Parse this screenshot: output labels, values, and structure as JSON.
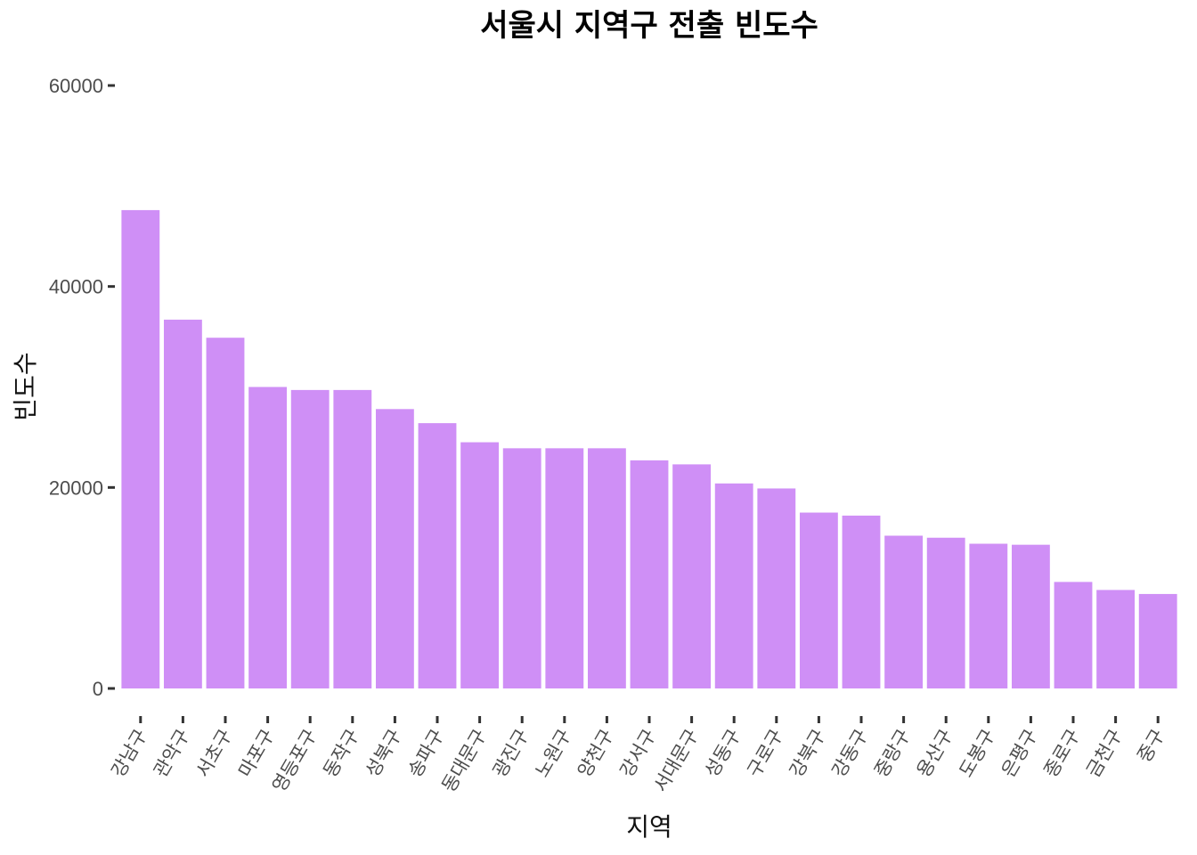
{
  "chart_data": {
    "type": "bar",
    "title": "서울시 지역구 전출 빈도수",
    "xlabel": "지역",
    "ylabel": "빈도수",
    "categories": [
      "강남구",
      "관악구",
      "서초구",
      "마포구",
      "영등포구",
      "동작구",
      "성북구",
      "송파구",
      "동대문구",
      "광진구",
      "노원구",
      "양천구",
      "강서구",
      "서대문구",
      "성동구",
      "구로구",
      "강북구",
      "강동구",
      "중랑구",
      "용산구",
      "도봉구",
      "은평구",
      "종로구",
      "금천구",
      "중구"
    ],
    "values": [
      47600,
      36700,
      34900,
      30000,
      29700,
      29700,
      27800,
      26400,
      24500,
      23900,
      23900,
      23900,
      22700,
      22300,
      20400,
      19900,
      17500,
      17200,
      15200,
      15000,
      14400,
      14300,
      10600,
      9800,
      9400
    ],
    "ylim": [
      0,
      60000
    ],
    "yticks": [
      0,
      20000,
      40000,
      60000
    ],
    "bar_color": "#cf8ff6",
    "grid": false,
    "legend": "none"
  }
}
